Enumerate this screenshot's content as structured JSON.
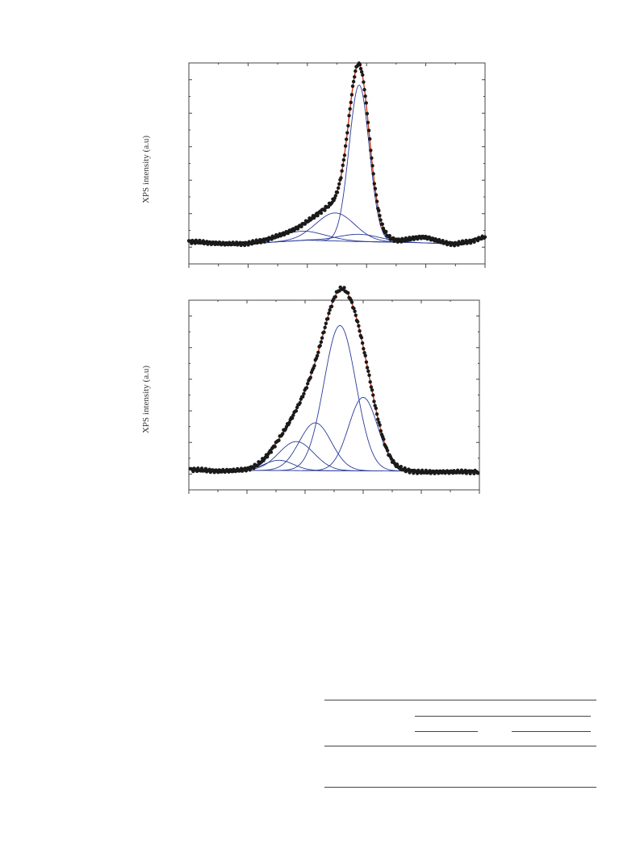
{
  "chart_data": [
    {
      "type": "line",
      "ylabel": "XPS intensity (a.u)",
      "xlim": [
        0,
        10
      ],
      "ylim": [
        -0.6,
        5.5
      ],
      "styling": {
        "points": "#1a1a1a",
        "fit": "#d03a1a",
        "components": "#2a3a9a",
        "axes": "#444444"
      },
      "components": [
        {
          "center": 5.75,
          "width": 0.34,
          "height": 4.75
        },
        {
          "center": 5.75,
          "width": 0.7,
          "height": 0.22
        },
        {
          "center": 4.95,
          "width": 0.65,
          "height": 0.85
        },
        {
          "center": 3.8,
          "width": 0.8,
          "height": 0.28
        },
        {
          "center": 7.9,
          "width": 0.4,
          "height": 0.17
        }
      ],
      "baseline": [
        [
          0,
          0.08
        ],
        [
          1.2,
          0.01
        ],
        [
          2.0,
          0.0
        ],
        [
          3.0,
          0.07
        ],
        [
          4.0,
          0.12
        ],
        [
          5.6,
          0.08
        ],
        [
          7.5,
          0.05
        ],
        [
          8.5,
          0.02
        ],
        [
          9.0,
          0.0
        ],
        [
          9.5,
          0.08
        ],
        [
          10.0,
          0.22
        ]
      ]
    },
    {
      "type": "line",
      "ylabel": "XPS intensity (a.u)",
      "xlim": [
        0,
        10
      ],
      "ylim": [
        -0.55,
        5.0
      ],
      "styling": {
        "points": "#1a1a1a",
        "fit": "#d03a1a",
        "components": "#2a3a9a",
        "axes": "#444444"
      },
      "components": [
        {
          "center": 5.2,
          "width": 0.55,
          "height": 4.25
        },
        {
          "center": 6.0,
          "width": 0.5,
          "height": 2.15
        },
        {
          "center": 4.35,
          "width": 0.55,
          "height": 1.4
        },
        {
          "center": 3.7,
          "width": 0.6,
          "height": 0.85
        },
        {
          "center": 3.1,
          "width": 0.5,
          "height": 0.3
        }
      ],
      "baseline": [
        [
          0,
          0.05
        ],
        [
          1.0,
          0.0
        ],
        [
          2.0,
          0.02
        ],
        [
          7.5,
          0.0
        ],
        [
          8.0,
          -0.03
        ],
        [
          10.0,
          -0.02
        ]
      ]
    }
  ]
}
